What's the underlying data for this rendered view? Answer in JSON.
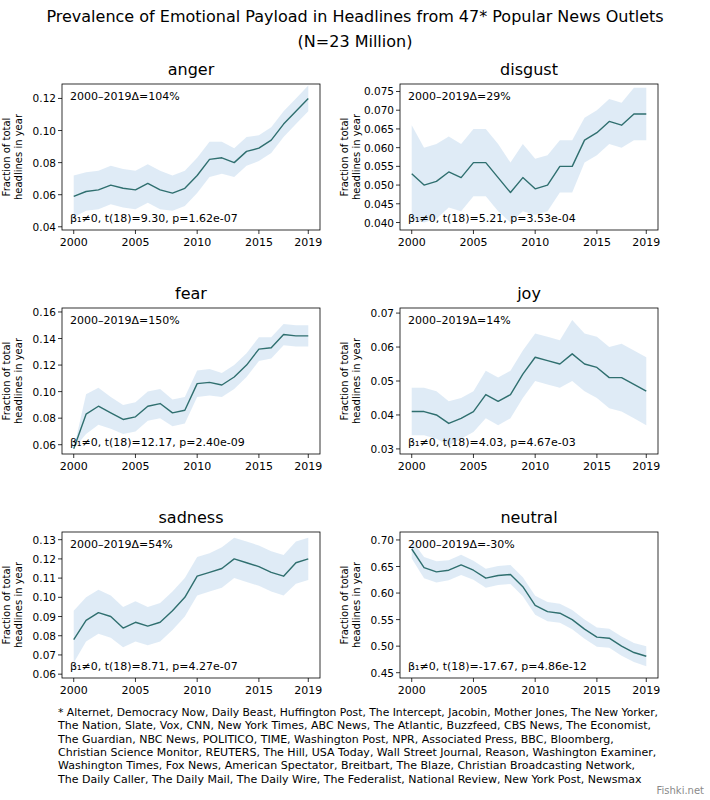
{
  "title": [
    "Prevalence of Emotional Payload in Headlines from 47* Popular News Outlets",
    "(N=23 Million)"
  ],
  "footnote": [
    "* Alternet, Democracy Now, Daily Beast, Huffington Post, The Intercept, Jacobin, Mother Jones, The New Yorker,",
    "The Nation, Slate, Vox, CNN, New York Times, ABC News, The Atlantic, Buzzfeed, CBS News, The Economist,",
    "The Guardian, NBC News, POLITICO, TIME, Washington Post, NPR, Associated Press, BBC, Bloomberg,",
    "Christian Science Monitor, REUTERS, The Hill, USA Today, Wall Street Journal, Reason, Washington Examiner,",
    "Washington Times, Fox News, American Spectator, Breitbart, The Blaze, Christian Broadcasting Network,",
    "The Daily Caller, The Daily Mail, The Daily Wire, The Federalist, National Review, New York Post, Newsmax"
  ],
  "watermark": "Fishki.net",
  "chart_data": [
    {
      "type": "line",
      "title": "anger",
      "color": "#2f6f6f",
      "ylabel": [
        "Fraction of total",
        "headlines in year"
      ],
      "annotations": [
        "2000–2019Δ=104%",
        "β₁≠0, t(18)=9.30, p=1.62e-07"
      ],
      "x": [
        2000,
        2001,
        2002,
        2003,
        2004,
        2005,
        2006,
        2007,
        2008,
        2009,
        2010,
        2011,
        2012,
        2013,
        2014,
        2015,
        2016,
        2017,
        2018,
        2019
      ],
      "values": [
        0.059,
        0.062,
        0.063,
        0.066,
        0.064,
        0.063,
        0.067,
        0.063,
        0.061,
        0.064,
        0.072,
        0.082,
        0.083,
        0.08,
        0.087,
        0.089,
        0.094,
        0.104,
        0.112,
        0.12
      ],
      "lower": [
        0.046,
        0.05,
        0.051,
        0.054,
        0.052,
        0.051,
        0.055,
        0.051,
        0.05,
        0.053,
        0.061,
        0.071,
        0.073,
        0.071,
        0.078,
        0.081,
        0.086,
        0.096,
        0.104,
        0.112
      ],
      "upper": [
        0.072,
        0.074,
        0.075,
        0.078,
        0.076,
        0.075,
        0.079,
        0.075,
        0.072,
        0.075,
        0.083,
        0.093,
        0.093,
        0.089,
        0.096,
        0.097,
        0.102,
        0.112,
        0.12,
        0.128
      ],
      "xlim": [
        1999.05,
        2019.95
      ],
      "xticks": [
        2000,
        2005,
        2010,
        2015,
        2019
      ],
      "ylim": [
        0.038,
        0.129
      ],
      "yticks": [
        0.04,
        0.06,
        0.08,
        {
          "value": 0.1,
          "label": "0.10"
        },
        0.12
      ]
    },
    {
      "type": "line",
      "title": "disgust",
      "color": "#2f6f6f",
      "ylabel": [
        "Fraction of total",
        "headlines in year"
      ],
      "annotations": [
        "2000–2019Δ=29%",
        "β₁≠0, t(18)=5.21, p=3.53e-04"
      ],
      "x": [
        2000,
        2001,
        2002,
        2003,
        2004,
        2005,
        2006,
        2007,
        2008,
        2009,
        2010,
        2011,
        2012,
        2013,
        2014,
        2015,
        2016,
        2017,
        2018,
        2019
      ],
      "values": [
        0.053,
        0.05,
        0.051,
        0.0535,
        0.052,
        0.056,
        0.056,
        0.052,
        0.048,
        0.052,
        0.049,
        0.05,
        0.055,
        0.055,
        0.062,
        0.064,
        0.067,
        0.066,
        0.069,
        0.069
      ],
      "lower": [
        0.041,
        0.04,
        0.041,
        0.044,
        0.043,
        0.047,
        0.047,
        0.043,
        0.04,
        0.043,
        0.042,
        0.043,
        0.048,
        0.048,
        0.056,
        0.058,
        0.061,
        0.06,
        0.062,
        0.062
      ],
      "upper": [
        0.066,
        0.06,
        0.061,
        0.063,
        0.061,
        0.065,
        0.065,
        0.061,
        0.056,
        0.061,
        0.057,
        0.058,
        0.062,
        0.062,
        0.068,
        0.07,
        0.073,
        0.072,
        0.076,
        0.076
      ],
      "xlim": [
        1999.05,
        2019.95
      ],
      "xticks": [
        2000,
        2005,
        2010,
        2015,
        2019
      ],
      "ylim": [
        0.038,
        0.077
      ],
      "yticks": [
        {
          "value": 0.04,
          "label": "0.040"
        },
        0.045,
        {
          "value": 0.05,
          "label": "0.050"
        },
        0.055,
        {
          "value": 0.06,
          "label": "0.060"
        },
        0.065,
        {
          "value": 0.07,
          "label": "0.070"
        },
        0.075
      ]
    },
    {
      "type": "line",
      "title": "fear",
      "color": "#2f6f6f",
      "ylabel": [
        "Fraction of total",
        "headlines in year"
      ],
      "annotations": [
        "2000–2019Δ=150%",
        "β₁≠0, t(18)=12.17, p=2.40e-09"
      ],
      "x": [
        2000,
        2001,
        2002,
        2003,
        2004,
        2005,
        2006,
        2007,
        2008,
        2009,
        2010,
        2011,
        2012,
        2013,
        2014,
        2015,
        2016,
        2017,
        2018,
        2019
      ],
      "values": [
        0.057,
        0.083,
        0.089,
        0.084,
        0.079,
        0.081,
        0.089,
        0.091,
        0.084,
        0.086,
        0.106,
        0.107,
        0.105,
        0.111,
        0.12,
        0.132,
        0.133,
        0.143,
        0.142,
        0.142
      ],
      "lower": [
        0.057,
        0.068,
        0.075,
        0.072,
        0.068,
        0.07,
        0.078,
        0.08,
        0.074,
        0.076,
        0.096,
        0.097,
        0.096,
        0.102,
        0.111,
        0.123,
        0.125,
        0.135,
        0.134,
        0.134
      ],
      "upper": [
        0.057,
        0.098,
        0.103,
        0.096,
        0.09,
        0.092,
        0.1,
        0.102,
        0.094,
        0.096,
        0.116,
        0.117,
        0.114,
        0.12,
        0.129,
        0.141,
        0.141,
        0.151,
        0.15,
        0.15
      ],
      "xlim": [
        1999.05,
        2019.95
      ],
      "xticks": [
        2000,
        2005,
        2010,
        2015,
        2019
      ],
      "ylim": [
        0.053,
        0.163
      ],
      "yticks": [
        0.06,
        0.08,
        {
          "value": 0.1,
          "label": "0.10"
        },
        0.12,
        0.14,
        0.16
      ]
    },
    {
      "type": "line",
      "title": "joy",
      "color": "#2f6f6f",
      "ylabel": [
        "Fraction of total",
        "headlines in year"
      ],
      "annotations": [
        "2000–2019Δ=14%",
        "β₁≠0, t(18)=4.03, p=4.67e-03"
      ],
      "x": [
        2000,
        2001,
        2002,
        2003,
        2004,
        2005,
        2006,
        2007,
        2008,
        2009,
        2010,
        2011,
        2012,
        2013,
        2014,
        2015,
        2016,
        2017,
        2018,
        2019
      ],
      "values": [
        0.041,
        0.041,
        0.04,
        0.0375,
        0.039,
        0.041,
        0.046,
        0.044,
        0.046,
        0.052,
        0.057,
        0.056,
        0.055,
        0.058,
        0.055,
        0.054,
        0.051,
        0.051,
        0.049,
        0.047
      ],
      "lower": [
        0.034,
        0.034,
        0.033,
        0.031,
        0.033,
        0.035,
        0.039,
        0.037,
        0.039,
        0.045,
        0.05,
        0.049,
        0.048,
        0.05,
        0.047,
        0.045,
        0.042,
        0.041,
        0.039,
        0.037
      ],
      "upper": [
        0.048,
        0.048,
        0.047,
        0.044,
        0.045,
        0.047,
        0.053,
        0.051,
        0.053,
        0.059,
        0.064,
        0.063,
        0.062,
        0.068,
        0.064,
        0.063,
        0.06,
        0.061,
        0.059,
        0.057
      ],
      "xlim": [
        1999.05,
        2019.95
      ],
      "xticks": [
        2000,
        2005,
        2010,
        2015,
        2019
      ],
      "ylim": [
        0.0285,
        0.0715
      ],
      "yticks": [
        0.03,
        0.04,
        0.05,
        0.06,
        0.07
      ]
    },
    {
      "type": "line",
      "title": "sadness",
      "color": "#2f6f6f",
      "ylabel": [
        "Fraction of total",
        "headlines in year"
      ],
      "annotations": [
        "2000–2019Δ=54%",
        "β₁≠0, t(18)=8.71, p=4.27e-07"
      ],
      "x": [
        2000,
        2001,
        2002,
        2003,
        2004,
        2005,
        2006,
        2007,
        2008,
        2009,
        2010,
        2011,
        2012,
        2013,
        2014,
        2015,
        2016,
        2017,
        2018,
        2019
      ],
      "values": [
        0.078,
        0.088,
        0.092,
        0.09,
        0.084,
        0.087,
        0.085,
        0.087,
        0.093,
        0.1,
        0.111,
        0.113,
        0.115,
        0.12,
        0.118,
        0.116,
        0.113,
        0.111,
        0.118,
        0.12
      ],
      "lower": [
        0.066,
        0.077,
        0.081,
        0.079,
        0.074,
        0.077,
        0.075,
        0.077,
        0.083,
        0.09,
        0.101,
        0.103,
        0.105,
        0.11,
        0.108,
        0.106,
        0.103,
        0.101,
        0.107,
        0.109
      ],
      "upper": [
        0.093,
        0.1,
        0.104,
        0.101,
        0.095,
        0.098,
        0.095,
        0.097,
        0.103,
        0.11,
        0.121,
        0.123,
        0.126,
        0.131,
        0.129,
        0.127,
        0.124,
        0.122,
        0.129,
        0.131
      ],
      "xlim": [
        1999.05,
        2019.95
      ],
      "xticks": [
        2000,
        2005,
        2010,
        2015,
        2019
      ],
      "ylim": [
        0.058,
        0.134
      ],
      "yticks": [
        0.06,
        0.07,
        0.08,
        0.09,
        {
          "value": 0.1,
          "label": "0.10"
        },
        0.11,
        0.12,
        0.13
      ]
    },
    {
      "type": "line",
      "title": "neutral",
      "color": "#2f6f6f",
      "ylabel": [
        "Fraction of total",
        "headlines in year"
      ],
      "annotations": [
        "2000–2019Δ=-30%",
        "β₁≠0, t(18)=-17.67, p=4.86e-12"
      ],
      "x": [
        2000,
        2001,
        2002,
        2003,
        2004,
        2005,
        2006,
        2007,
        2008,
        2009,
        2010,
        2011,
        2012,
        2013,
        2014,
        2015,
        2016,
        2017,
        2018,
        2019
      ],
      "values": [
        0.683,
        0.648,
        0.64,
        0.643,
        0.653,
        0.643,
        0.628,
        0.633,
        0.635,
        0.612,
        0.577,
        0.565,
        0.562,
        0.55,
        0.532,
        0.517,
        0.515,
        0.5,
        0.488,
        0.481
      ],
      "lower": [
        0.665,
        0.628,
        0.62,
        0.624,
        0.634,
        0.625,
        0.61,
        0.615,
        0.617,
        0.594,
        0.559,
        0.547,
        0.544,
        0.532,
        0.514,
        0.499,
        0.497,
        0.482,
        0.47,
        0.462
      ],
      "upper": [
        0.7,
        0.668,
        0.66,
        0.662,
        0.672,
        0.661,
        0.646,
        0.651,
        0.653,
        0.63,
        0.595,
        0.583,
        0.58,
        0.568,
        0.55,
        0.535,
        0.533,
        0.518,
        0.506,
        0.5
      ],
      "xlim": [
        1999.05,
        2019.95
      ],
      "xticks": [
        2000,
        2005,
        2010,
        2015,
        2019
      ],
      "ylim": [
        0.44,
        0.715
      ],
      "yticks": [
        0.45,
        {
          "value": 0.5,
          "label": "0.50"
        },
        0.55,
        {
          "value": 0.6,
          "label": "0.60"
        },
        0.65,
        {
          "value": 0.7,
          "label": "0.70"
        }
      ]
    }
  ]
}
